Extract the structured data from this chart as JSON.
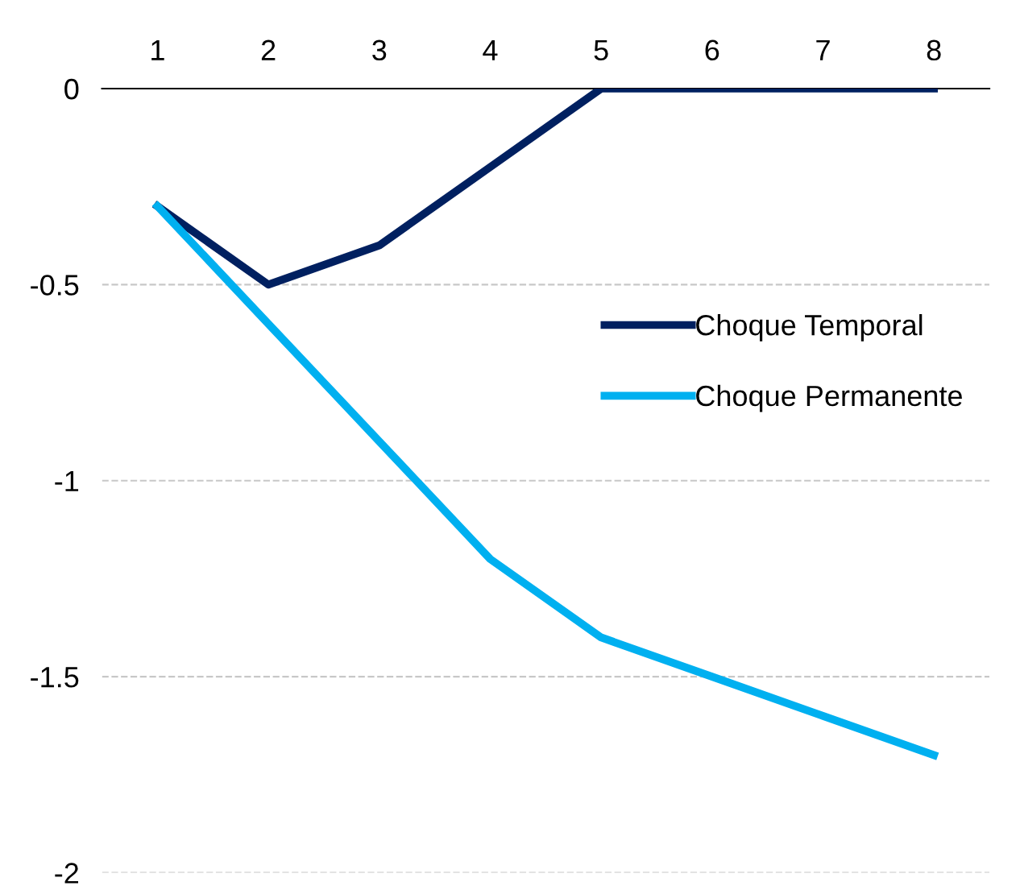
{
  "chart_data": {
    "type": "line",
    "categories": [
      "1",
      "2",
      "3",
      "4",
      "5",
      "6",
      "7",
      "8"
    ],
    "series": [
      {
        "name": "Choque Temporal",
        "color": "#002060",
        "values": [
          -0.3,
          -0.5,
          -0.4,
          -0.2,
          0,
          0,
          0,
          0
        ]
      },
      {
        "name": "Choque Permanente",
        "color": "#00b0f0",
        "values": [
          -0.3,
          -0.6,
          -0.9,
          -1.2,
          -1.4,
          -1.5,
          -1.6,
          -1.7
        ]
      }
    ],
    "ylim": [
      -2,
      0
    ],
    "yticks": [
      0,
      -0.5,
      -1,
      -1.5,
      -2
    ],
    "grid": "y",
    "legend": "right",
    "marker": "none",
    "line_style": "solid"
  }
}
